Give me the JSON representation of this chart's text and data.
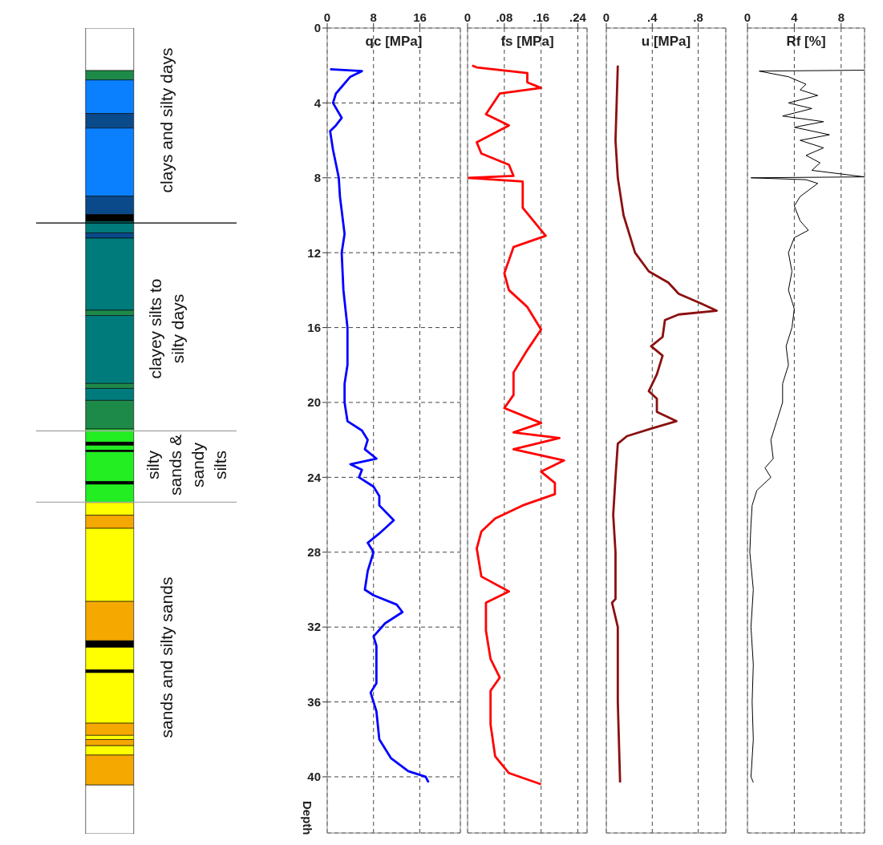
{
  "chart_data": [
    {
      "type": "bar",
      "stacked": true,
      "categories": [
        null
      ],
      "ylim": [
        43,
        0
      ],
      "tick_labels": false,
      "series": [
        {
          "color": "#ffffff",
          "values": [
            2.27
          ]
        },
        {
          "color": "#1e8a4a",
          "values": [
            0.5
          ]
        },
        {
          "color": "#0a80ff",
          "values": [
            1.79
          ]
        },
        {
          "color": "#0a4a8a",
          "values": [
            0.78
          ]
        },
        {
          "color": "#0a80ff",
          "values": [
            3.63
          ]
        },
        {
          "color": "#0a4a8a",
          "values": [
            0.98
          ]
        },
        {
          "color": "#000000",
          "values": [
            0.36
          ]
        },
        {
          "color": "#007b7b",
          "values": [
            0.62
          ]
        },
        {
          "color": "#0a4a8a",
          "values": [
            0.28
          ]
        },
        {
          "color": "#007b7b",
          "values": [
            3.85
          ]
        },
        {
          "color": "#1e8a4a",
          "values": [
            0.28
          ]
        },
        {
          "color": "#007b7b",
          "values": [
            3.63
          ]
        },
        {
          "color": "#1e8a4a",
          "values": [
            0.26
          ]
        },
        {
          "color": "#007b7b",
          "values": [
            0.64
          ]
        },
        {
          "color": "#1e8a4a",
          "values": [
            1.53
          ]
        },
        {
          "color": "#22ee22",
          "values": [
            0.7
          ]
        },
        {
          "color": "#000000",
          "values": [
            0.17
          ]
        },
        {
          "color": "#22ee22",
          "values": [
            0.26
          ]
        },
        {
          "color": "#000000",
          "values": [
            0.08
          ]
        },
        {
          "color": "#22ee22",
          "values": [
            1.59
          ]
        },
        {
          "color": "#000000",
          "values": [
            0.14
          ]
        },
        {
          "color": "#22ee22",
          "values": [
            0.98
          ]
        },
        {
          "color": "#ffff00",
          "values": [
            0.68
          ]
        },
        {
          "color": "#f5a800",
          "values": [
            0.7
          ]
        },
        {
          "color": "#ffff00",
          "values": [
            3.9
          ]
        },
        {
          "color": "#f5a800",
          "values": [
            2.1
          ]
        },
        {
          "color": "#000000",
          "values": [
            0.35
          ]
        },
        {
          "color": "#ffff00",
          "values": [
            1.2
          ]
        },
        {
          "color": "#000000",
          "values": [
            0.15
          ]
        },
        {
          "color": "#ffff00",
          "values": [
            2.7
          ]
        },
        {
          "color": "#f5a800",
          "values": [
            0.65
          ]
        },
        {
          "color": "#ffff00",
          "values": [
            0.22
          ]
        },
        {
          "color": "#f5a800",
          "values": [
            0.33
          ]
        },
        {
          "color": "#ffff00",
          "values": [
            0.5
          ]
        },
        {
          "color": "#f5a800",
          "values": [
            1.6
          ]
        },
        {
          "color": "#ffffff",
          "values": [
            2.6
          ]
        }
      ],
      "ref_lines": [
        {
          "axis": "y",
          "value": 10.4,
          "color": "#000000"
        },
        {
          "axis": "y",
          "value": 21.5,
          "color": "#aaaaaa"
        },
        {
          "axis": "y",
          "value": 25.3,
          "color": "#aaaaaa"
        }
      ],
      "annotations": [
        "clays and silty days",
        "clayey silts to silty days",
        "silty sands & sandy silts",
        "sands and silty sands"
      ]
    },
    {
      "type": "line",
      "orientation": "horizontal",
      "xlabel": "qc [MPa]",
      "ylabel": "Depth",
      "xlim": [
        0,
        23
      ],
      "xticks": [
        0,
        8,
        16
      ],
      "ylim": [
        43,
        0
      ],
      "yticks": [
        0,
        4,
        8,
        12,
        16,
        20,
        24,
        28,
        32,
        36,
        40
      ],
      "grid": true,
      "series": [
        {
          "color": "#0000ff",
          "x": [
            2.2,
            2.3,
            2.6,
            3.5,
            4.0,
            4.8,
            5.2,
            5.5,
            6.5,
            8,
            9,
            11,
            12,
            14,
            16,
            18,
            19,
            20,
            21,
            21.5,
            22,
            22.5,
            23,
            23.3,
            23.6,
            24,
            24.5,
            25,
            25.5,
            26.3,
            27,
            27.5,
            28,
            29,
            30,
            30.3,
            30.8,
            31.2,
            31.8,
            32.5,
            33,
            34,
            35,
            35.5,
            36.5,
            38,
            39,
            39.7,
            40.0,
            40.3
          ],
          "values": [
            0.5,
            6,
            4,
            1.5,
            1,
            2.5,
            1.5,
            0.5,
            1,
            2,
            2.2,
            3,
            2.5,
            2.8,
            3.5,
            3.5,
            3,
            3,
            3.5,
            6,
            7,
            6.5,
            8.5,
            4,
            6,
            5.5,
            8,
            9,
            9,
            11.5,
            9,
            7,
            8,
            7,
            6.5,
            8,
            12,
            13,
            10,
            8,
            8.5,
            8.5,
            8.5,
            7.5,
            8.5,
            9,
            11,
            14,
            17,
            17.5
          ]
        }
      ]
    },
    {
      "type": "line",
      "orientation": "horizontal",
      "xlabel": "fs [MPa]",
      "xlim": [
        0,
        0.26
      ],
      "xticks": [
        0,
        {
          "value": 0.08,
          "label": ".08"
        },
        {
          "value": 0.16,
          "label": ".16"
        },
        {
          "value": 0.24,
          "label": ".24"
        }
      ],
      "ylim": [
        43,
        0
      ],
      "yticks": [
        0,
        4,
        8,
        12,
        16,
        20,
        24,
        28,
        32,
        36,
        40
      ],
      "grid": true,
      "tick_labels": "x",
      "series": [
        {
          "color": "#ff0000",
          "x": [
            2.0,
            2.1,
            2.4,
            2.9,
            3.1,
            3.2,
            3.5,
            4.6,
            5.2,
            6.1,
            6.7,
            7.3,
            7.9,
            8.0,
            8.2,
            9.6,
            10.5,
            11.1,
            11.7,
            13.1,
            14.0,
            14.9,
            16.1,
            17.2,
            18.4,
            19.6,
            20.3,
            21.1,
            21.6,
            21.9,
            22.5,
            23.1,
            23.7,
            24.3,
            24.9,
            25.5,
            26.2,
            26.9,
            27.8,
            29.3,
            30.1,
            30.7,
            32.2,
            33.7,
            34.7,
            35.4,
            37.2,
            38.9,
            39.8,
            40.4
          ],
          "values": [
            0.01,
            0.02,
            0.13,
            0.13,
            0.15,
            0.16,
            0.07,
            0.04,
            0.09,
            0.02,
            0.03,
            0.09,
            0.1,
            0,
            0.12,
            0.12,
            0.15,
            0.17,
            0.1,
            0.08,
            0.09,
            0.13,
            0.16,
            0.13,
            0.1,
            0.1,
            0.08,
            0.16,
            0.1,
            0.2,
            0.1,
            0.21,
            0.16,
            0.19,
            0.19,
            0.12,
            0.06,
            0.03,
            0.02,
            0.03,
            0.09,
            0.04,
            0.04,
            0.05,
            0.07,
            0.05,
            0.05,
            0.06,
            0.09,
            0.16
          ]
        }
      ]
    },
    {
      "type": "line",
      "orientation": "horizontal",
      "xlabel": "u [MPa]",
      "xlim": [
        0,
        1.04
      ],
      "xticks": [
        0,
        {
          "value": 0.4,
          "label": ".4"
        },
        {
          "value": 0.8,
          "label": ".8"
        }
      ],
      "ylim": [
        43,
        0
      ],
      "yticks": [
        0,
        4,
        8,
        12,
        16,
        20,
        24,
        28,
        32,
        36,
        40
      ],
      "grid": true,
      "tick_labels": "x",
      "series": [
        {
          "color": "#8b1010",
          "x": [
            2.0,
            6,
            8,
            10,
            12,
            13,
            13.6,
            14.2,
            14.7,
            15.1,
            15.3,
            15.6,
            16.5,
            17.0,
            17.5,
            18.5,
            19.4,
            19.8,
            20.5,
            21.0,
            21.4,
            21.8,
            22.2,
            24,
            26,
            28,
            30.5,
            30.7,
            32,
            36,
            40.3
          ],
          "values": [
            0.1,
            0.08,
            0.1,
            0.15,
            0.25,
            0.37,
            0.54,
            0.63,
            0.82,
            0.96,
            0.63,
            0.51,
            0.49,
            0.39,
            0.49,
            0.44,
            0.37,
            0.44,
            0.44,
            0.61,
            0.39,
            0.18,
            0.1,
            0.08,
            0.06,
            0.08,
            0.08,
            0.05,
            0.1,
            0.1,
            0.12
          ]
        }
      ]
    },
    {
      "type": "line",
      "orientation": "horizontal",
      "xlabel": "Rf [%]",
      "xlim": [
        0,
        10
      ],
      "xticks": [
        0,
        4,
        8
      ],
      "ylim": [
        43,
        0
      ],
      "yticks": [
        0,
        4,
        8,
        12,
        16,
        20,
        24,
        28,
        32,
        36,
        40
      ],
      "grid": true,
      "tick_labels": "x",
      "series": [
        {
          "color": "#000000",
          "x": [
            2.25,
            2.3,
            2.6,
            3.0,
            3.3,
            3.6,
            4.0,
            4.3,
            4.7,
            5.0,
            5.3,
            5.7,
            6.0,
            6.4,
            6.8,
            7.2,
            7.6,
            7.95,
            8.0,
            8.1,
            8.3,
            9,
            9.5,
            10.3,
            10.8,
            11.2,
            12,
            13,
            14,
            15,
            16,
            17,
            18,
            19,
            20,
            21,
            22,
            23,
            23.5,
            24,
            24.7,
            25.5,
            26.5,
            28,
            30,
            32,
            34,
            36,
            38,
            40,
            40.3
          ],
          "values": [
            10,
            1,
            3.5,
            5,
            4.5,
            6,
            3.5,
            5.5,
            3,
            6.5,
            4,
            7,
            4.5,
            6.5,
            5,
            6.2,
            5.5,
            10,
            0.3,
            5,
            6,
            4.5,
            4,
            4.5,
            5.2,
            4,
            3.5,
            3.8,
            3.5,
            4,
            3.8,
            3.3,
            3.5,
            3,
            3,
            2.5,
            2,
            2.2,
            1.5,
            2,
            0.8,
            0.4,
            0.3,
            0.2,
            0.5,
            0.3,
            0.5,
            0.4,
            0.5,
            0.3,
            0.5
          ]
        }
      ]
    }
  ]
}
